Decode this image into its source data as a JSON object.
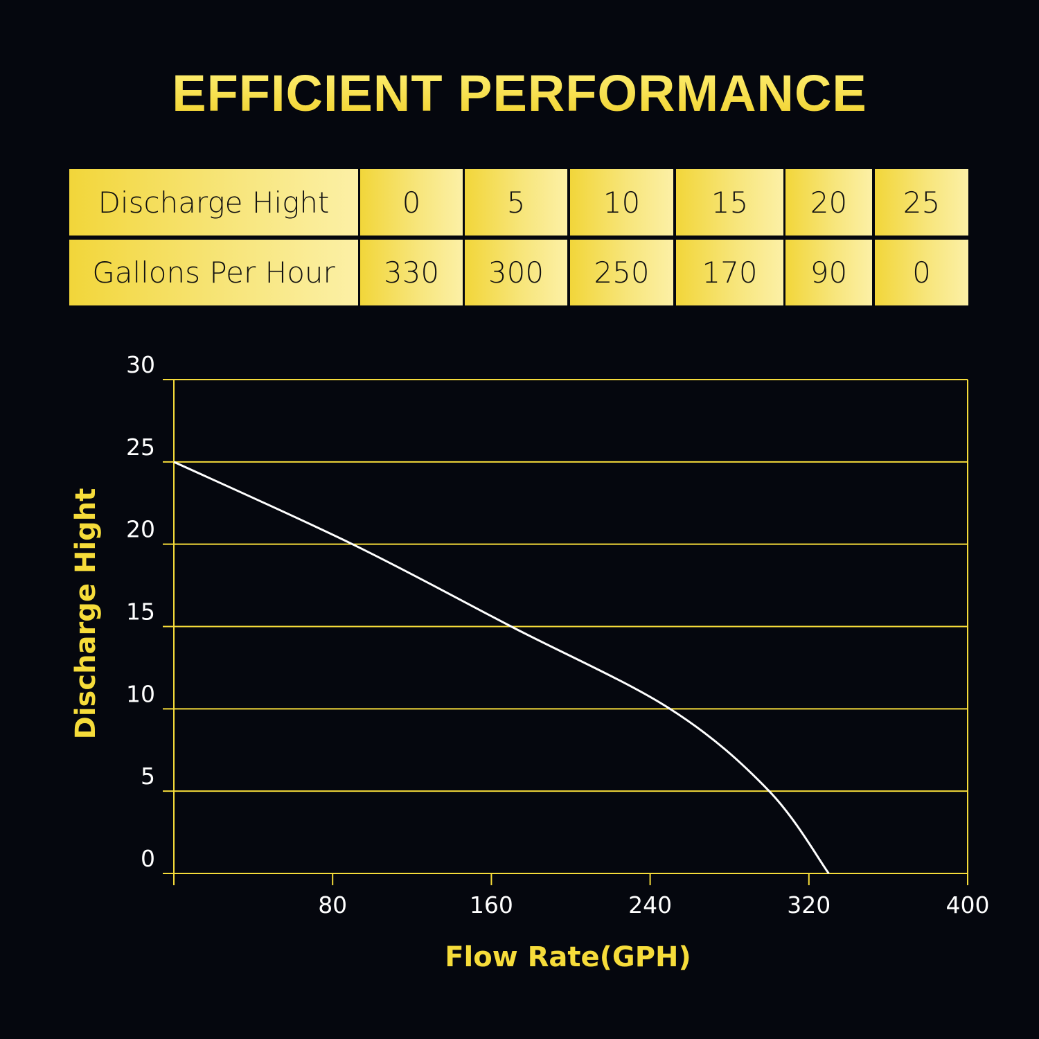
{
  "title": "EFFICIENT PERFORMANCE",
  "table": {
    "rows": [
      {
        "label": "Discharge Hight",
        "values": [
          "0",
          "5",
          "10",
          "15",
          "20",
          "25"
        ]
      },
      {
        "label": "Gallons Per Hour",
        "values": [
          "330",
          "300",
          "250",
          "170",
          "90",
          "0"
        ]
      }
    ]
  },
  "colors": {
    "accent": "#f6dc3a",
    "background": "#05070e",
    "curve": "#ffffff"
  },
  "chart_data": {
    "type": "line",
    "xlabel": "Flow Rate(GPH)",
    "ylabel": "Discharge Hight",
    "xlim": [
      0,
      400
    ],
    "ylim": [
      0,
      30
    ],
    "xticks": [
      "80",
      "160",
      "240",
      "320",
      "400"
    ],
    "yticks": [
      "0",
      "5",
      "10",
      "15",
      "20",
      "25",
      "30"
    ],
    "grid": "horizontal",
    "x": [
      0,
      90,
      170,
      250,
      300,
      330
    ],
    "y": [
      25,
      20,
      15,
      10,
      5,
      0
    ]
  }
}
